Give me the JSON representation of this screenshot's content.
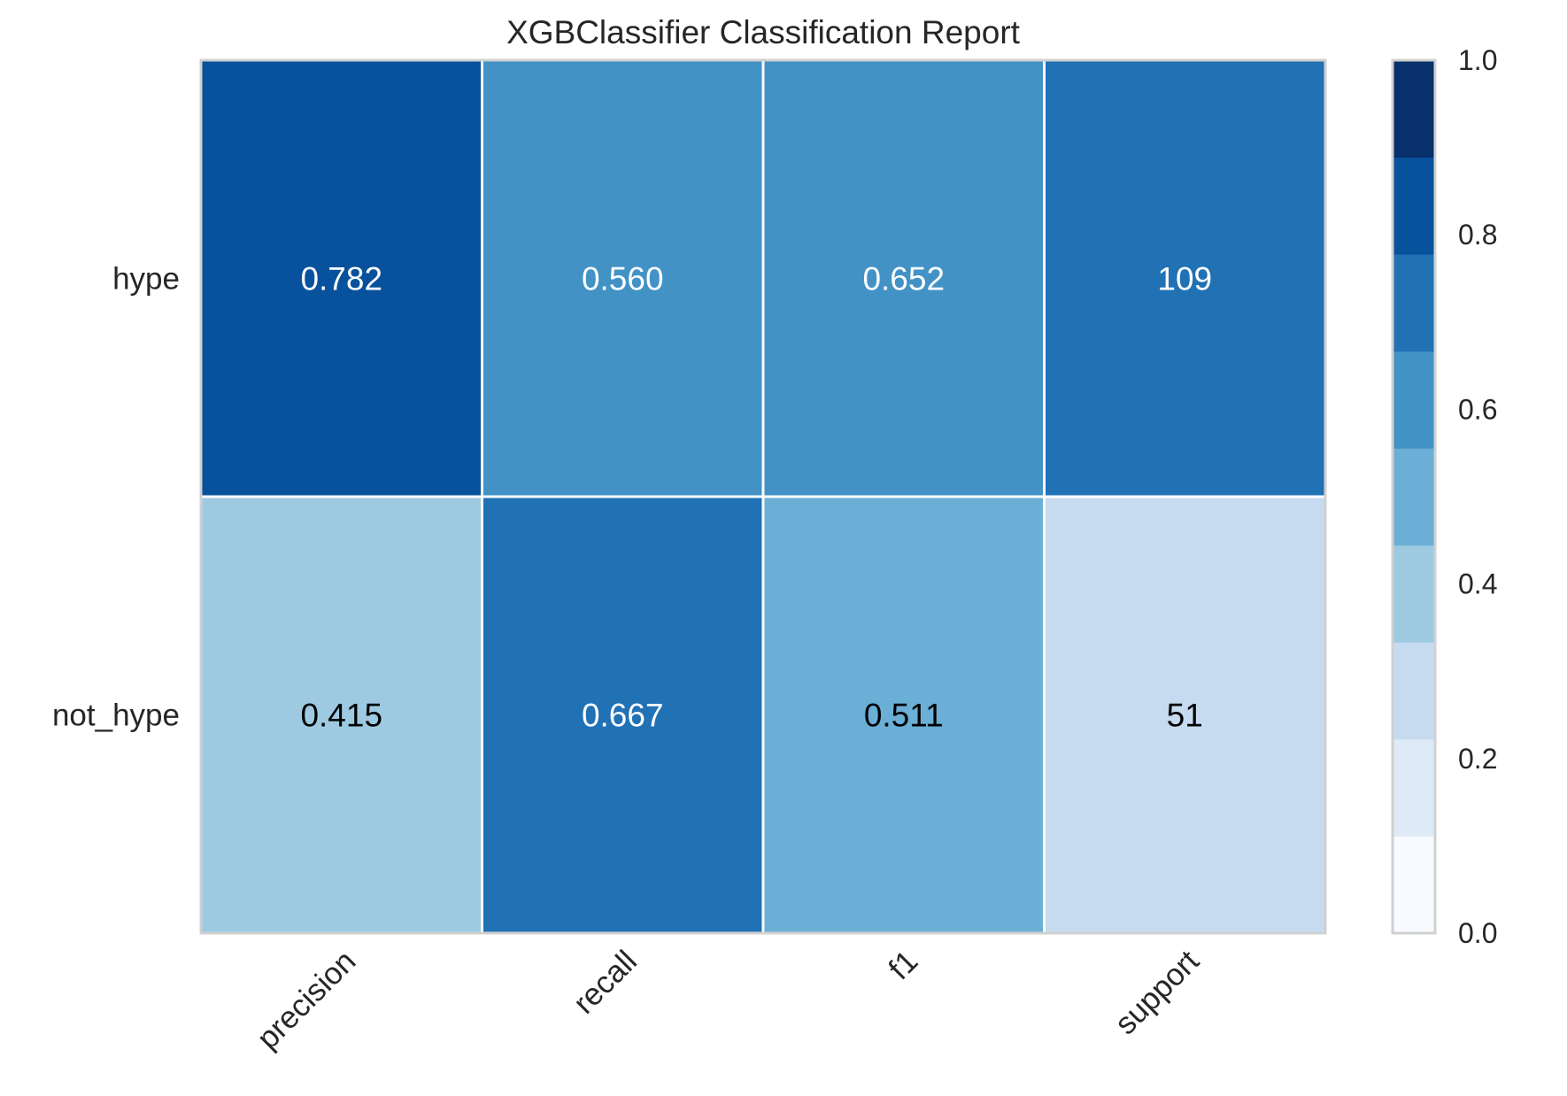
{
  "chart_data": {
    "type": "heatmap",
    "title": "XGBClassifier Classification Report",
    "rows": [
      "hype",
      "not_hype"
    ],
    "columns": [
      "precision",
      "recall",
      "f1",
      "support"
    ],
    "values": [
      [
        0.782,
        0.56,
        0.652,
        109
      ],
      [
        0.415,
        0.667,
        0.511,
        51
      ]
    ],
    "cell_labels": [
      [
        "0.782",
        "0.560",
        "0.652",
        "109"
      ],
      [
        "0.415",
        "0.667",
        "0.511",
        "51"
      ]
    ],
    "color_values": [
      [
        0.782,
        0.56,
        0.652,
        0.681
      ],
      [
        0.415,
        0.667,
        0.511,
        0.319
      ]
    ],
    "colorbar": {
      "min": 0.0,
      "max": 1.0,
      "ticks": [
        "0.0",
        "0.2",
        "0.4",
        "0.6",
        "0.8",
        "1.0"
      ],
      "bins": 9,
      "colors": [
        "#f7fbff",
        "#deebf7",
        "#c6dbef",
        "#9ecae1",
        "#6baed6",
        "#4292c6",
        "#2171b5",
        "#08519c",
        "#08306b"
      ]
    },
    "cmap": "Blues",
    "text_colors": {
      "dark_bg": "#ffffff",
      "light_bg": "#000000"
    },
    "grid": false
  }
}
